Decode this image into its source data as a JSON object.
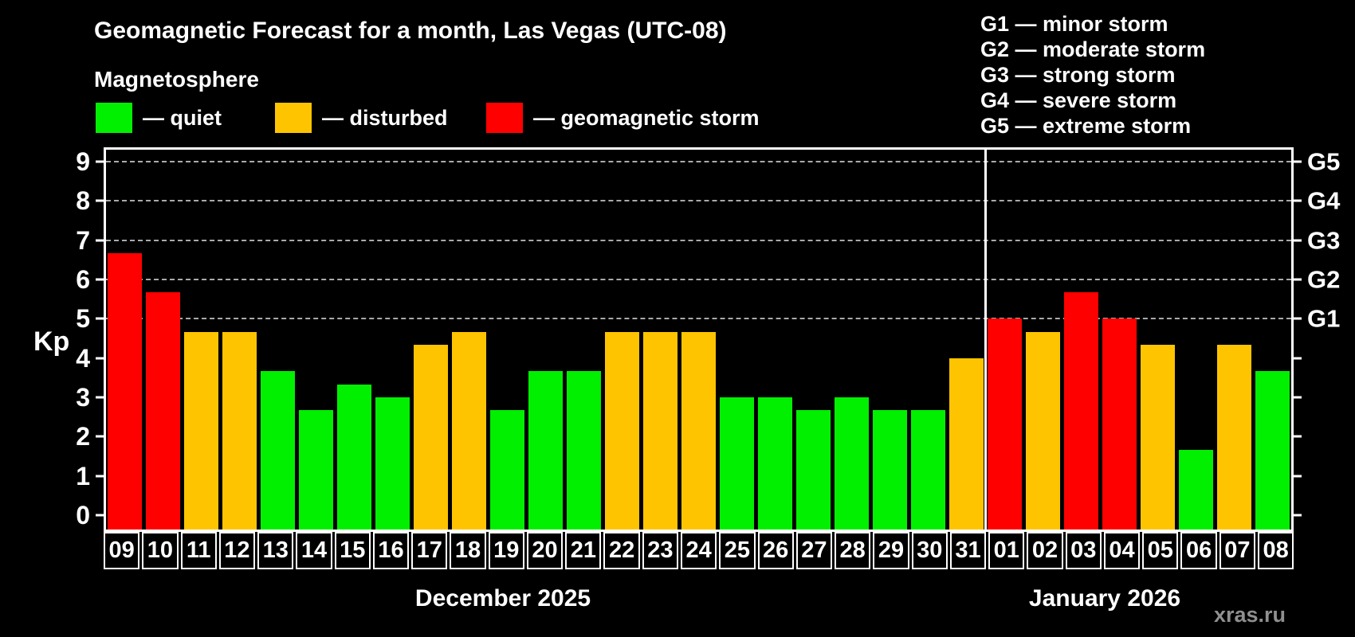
{
  "title": "Geomagnetic Forecast for a month, Las Vegas (UTC-08)",
  "subtitle": "Magnetosphere",
  "legend": [
    {
      "label": "— quiet",
      "status": "quiet"
    },
    {
      "label": "— disturbed",
      "status": "disturbed"
    },
    {
      "label": "— geomagnetic storm",
      "status": "storm"
    }
  ],
  "g_legend": [
    "G1 — minor storm",
    "G2 — moderate storm",
    "G3 — strong storm",
    "G4 — severe storm",
    "G5 — extreme storm"
  ],
  "status_colors": {
    "quiet": "#00f000",
    "disturbed": "#ffc400",
    "storm": "#ff0000"
  },
  "grid_color": "#aaaaaa",
  "months": [
    {
      "label": "December 2025"
    },
    {
      "label": "January 2026"
    }
  ],
  "watermark": "xras.ru",
  "chart_data": {
    "type": "bar",
    "title": "Geomagnetic Forecast for a month, Las Vegas (UTC-08)",
    "xlabel": "",
    "ylabel": "Kp",
    "ylim": [
      0,
      9
    ],
    "grid": "dashed horizontal at Kp 5-9 only",
    "legend_position": "top",
    "categories": [
      "09",
      "10",
      "11",
      "12",
      "13",
      "14",
      "15",
      "16",
      "17",
      "18",
      "19",
      "20",
      "21",
      "22",
      "23",
      "24",
      "25",
      "26",
      "27",
      "28",
      "29",
      "30",
      "31",
      "01",
      "02",
      "03",
      "04",
      "05",
      "06",
      "07",
      "08"
    ],
    "values": [
      6.67,
      5.67,
      4.67,
      4.67,
      3.67,
      2.67,
      3.33,
      3.0,
      4.33,
      4.67,
      2.67,
      3.67,
      3.67,
      4.67,
      4.67,
      4.67,
      3.0,
      3.0,
      2.67,
      3.0,
      2.67,
      2.67,
      4.0,
      5.0,
      4.67,
      5.67,
      5.0,
      4.33,
      1.67,
      4.33,
      3.67
    ],
    "statuses": [
      "storm",
      "storm",
      "disturbed",
      "disturbed",
      "quiet",
      "quiet",
      "quiet",
      "quiet",
      "disturbed",
      "disturbed",
      "quiet",
      "quiet",
      "quiet",
      "disturbed",
      "disturbed",
      "disturbed",
      "quiet",
      "quiet",
      "quiet",
      "quiet",
      "quiet",
      "quiet",
      "disturbed",
      "storm",
      "disturbed",
      "storm",
      "storm",
      "disturbed",
      "quiet",
      "disturbed",
      "quiet"
    ],
    "yticks": [
      0,
      1,
      2,
      3,
      4,
      5,
      6,
      7,
      8,
      9
    ],
    "gridlines_at": [
      5,
      6,
      7,
      8,
      9
    ],
    "right_axis_labels": [
      {
        "value": 5,
        "label": "G1"
      },
      {
        "value": 6,
        "label": "G2"
      },
      {
        "value": 7,
        "label": "G3"
      },
      {
        "value": 8,
        "label": "G4"
      },
      {
        "value": 9,
        "label": "G5"
      }
    ],
    "month_split_index": 23
  }
}
